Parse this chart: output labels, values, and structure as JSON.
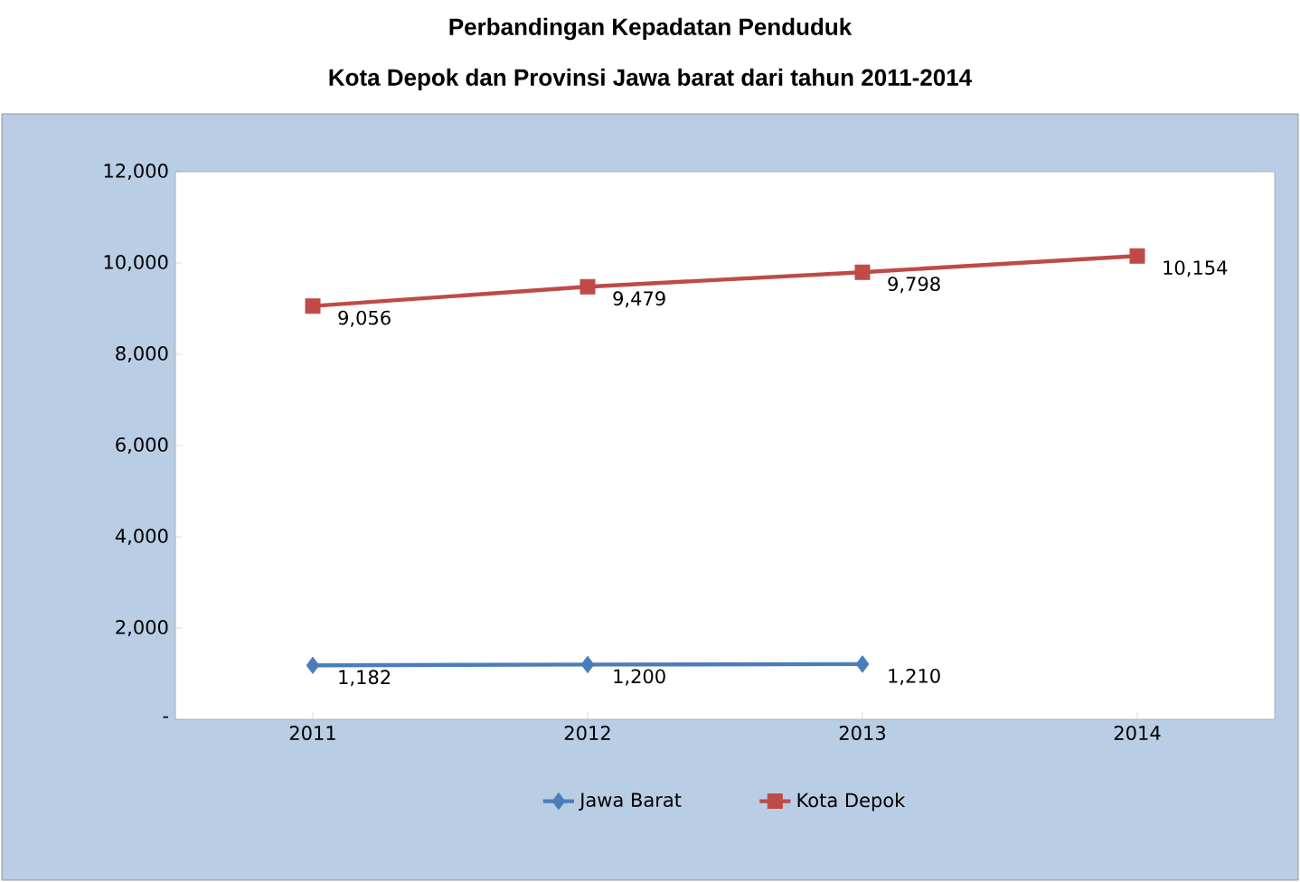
{
  "chart_data": {
    "type": "line",
    "title": "Perbandingan Kepadatan Penduduk",
    "subtitle": "Kota Depok dan Provinsi Jawa barat dari tahun 2011-2014",
    "categories": [
      "2011",
      "2012",
      "2013",
      "2014"
    ],
    "series": [
      {
        "name": "Jawa Barat",
        "color": "#4a7ebb",
        "marker": "diamond",
        "values": [
          1182,
          1200,
          1210,
          null
        ],
        "value_labels": [
          "1,182",
          "1,200",
          "1,210",
          null
        ]
      },
      {
        "name": "Kota Depok",
        "color": "#be4b48",
        "marker": "square",
        "values": [
          9056,
          9479,
          9798,
          10154
        ],
        "value_labels": [
          "9,056",
          "9,479",
          "9,798",
          "10,154"
        ]
      }
    ],
    "ylim": [
      0,
      12000
    ],
    "yticks": [
      {
        "value": 0,
        "label": "-"
      },
      {
        "value": 2000,
        "label": "2,000"
      },
      {
        "value": 4000,
        "label": "4,000"
      },
      {
        "value": 6000,
        "label": "6,000"
      },
      {
        "value": 8000,
        "label": "8,000"
      },
      {
        "value": 10000,
        "label": "10,000"
      },
      {
        "value": 12000,
        "label": "12,000"
      }
    ],
    "legend": "bottom"
  }
}
